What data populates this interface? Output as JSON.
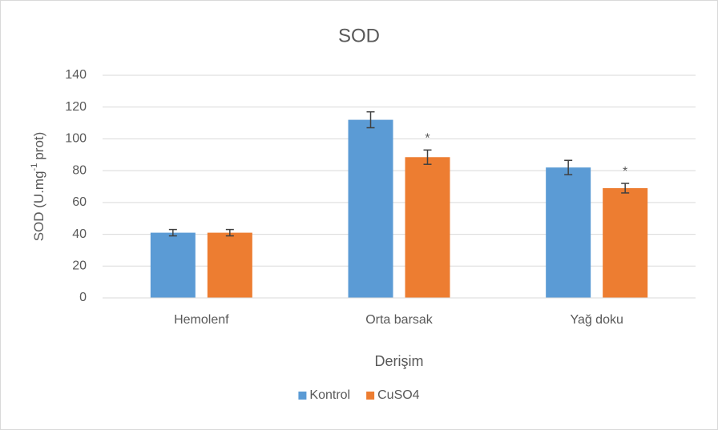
{
  "chart_data": {
    "type": "bar",
    "title": "SOD",
    "y_label": [
      "SOD (U.mg",
      "-1",
      "prot)"
    ],
    "x_label": "Derişim",
    "categories": [
      "Hemolenf",
      "Orta barsak",
      "Yağ doku"
    ],
    "series": [
      {
        "name": "Kontrol",
        "color": "#5b9bd5",
        "values": [
          41,
          112,
          82
        ],
        "errors": [
          2,
          5,
          4.5
        ],
        "markers": [
          null,
          null,
          null
        ]
      },
      {
        "name": "CuSO4",
        "color": "#ed7d31",
        "values": [
          41,
          88.5,
          69
        ],
        "errors": [
          2,
          4.5,
          3
        ],
        "markers": [
          null,
          "*",
          "*"
        ]
      }
    ],
    "ylim": [
      0,
      140
    ],
    "yticks": [
      0,
      20,
      40,
      60,
      80,
      100,
      120,
      140
    ],
    "grid": true,
    "legend": "bottom"
  }
}
